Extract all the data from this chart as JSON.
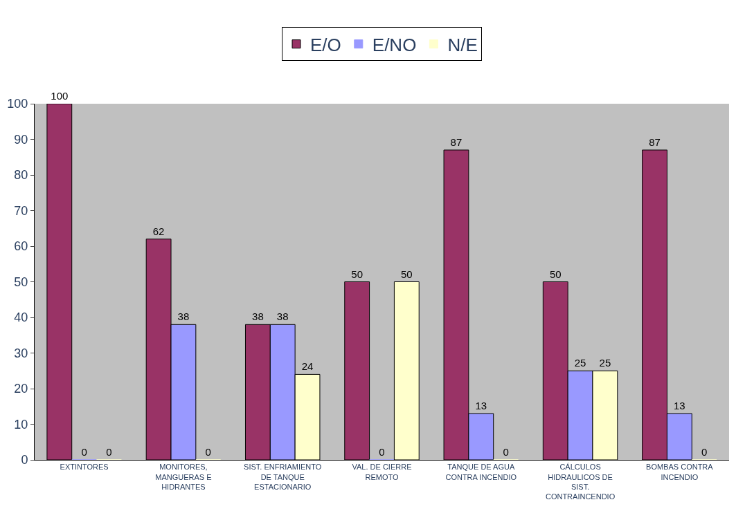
{
  "chart_data": {
    "type": "bar",
    "categories": [
      "EXTINTORES",
      "MONITORES, MANGUERAS E HIDRANTES",
      "SIST. ENFRIAMIENTO DE TANQUE ESTACIONARIO",
      "VAL. DE CIERRE REMOTO",
      "TANQUE DE AGUA CONTRA INCENDIO",
      "CÁLCULOS HIDRAULICOS DE SIST. CONTRAINCENDIO",
      "BOMBAS CONTRA INCENDIO"
    ],
    "series": [
      {
        "name": "E/O",
        "color": "#993366",
        "values": [
          100,
          62,
          38,
          50,
          87,
          50,
          87
        ]
      },
      {
        "name": "E/NO",
        "color": "#9999ff",
        "values": [
          0,
          38,
          38,
          0,
          13,
          25,
          13
        ]
      },
      {
        "name": "N/E",
        "color": "#ffffcc",
        "values": [
          0,
          0,
          24,
          50,
          0,
          25,
          0
        ]
      }
    ],
    "ylim": [
      0,
      100
    ],
    "yticks": [
      0,
      10,
      20,
      30,
      40,
      50,
      60,
      70,
      80,
      90,
      100
    ],
    "data_labels": true,
    "legend": "top",
    "grid": false
  }
}
